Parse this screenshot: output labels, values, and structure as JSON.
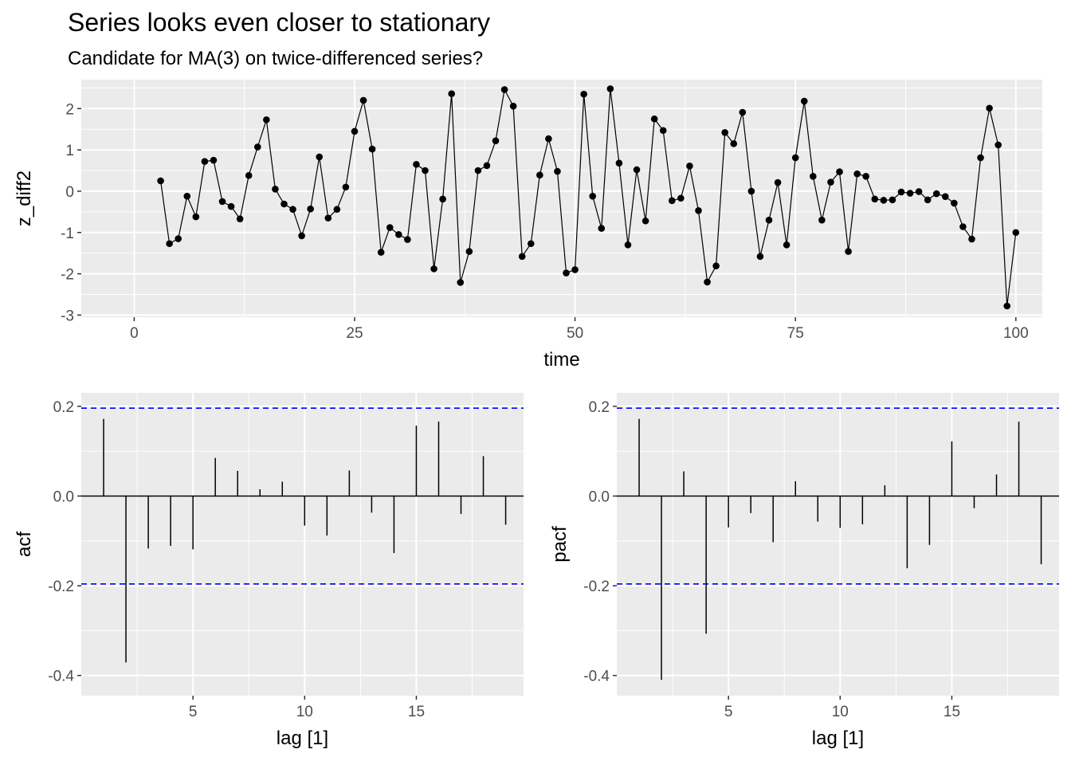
{
  "title": "Series looks even closer to stationary",
  "subtitle": "Candidate for MA(3) on twice-differenced series?",
  "colors": {
    "panel": "#ebebeb",
    "grid": "#ffffff",
    "series": "#000000",
    "ci_line": "#0000ff"
  },
  "chart_data": [
    {
      "type": "line",
      "xlabel": "time",
      "ylabel": "z_diff2",
      "xlim": [
        -6,
        103
      ],
      "ylim": [
        -3.05,
        2.7
      ],
      "x_ticks": [
        0,
        25,
        50,
        75,
        100
      ],
      "y_ticks": [
        -3,
        -2,
        -1,
        0,
        1,
        2
      ],
      "x_tick_labels": [
        "0",
        "25",
        "50",
        "75",
        "100"
      ],
      "y_tick_labels": [
        "-3",
        "-2",
        "-1",
        "0",
        "1",
        "2"
      ],
      "grid": true,
      "markers": true,
      "x": [
        3,
        4,
        5,
        6,
        7,
        8,
        9,
        10,
        11,
        12,
        13,
        14,
        15,
        16,
        17,
        18,
        19,
        20,
        21,
        22,
        23,
        24,
        25,
        26,
        27,
        28,
        29,
        30,
        31,
        32,
        33,
        34,
        35,
        36,
        37,
        38,
        39,
        40,
        41,
        42,
        43,
        44,
        45,
        46,
        47,
        48,
        49,
        50,
        51,
        52,
        53,
        54,
        55,
        56,
        57,
        58,
        59,
        60,
        61,
        62,
        63,
        64,
        65,
        66,
        67,
        68,
        69,
        70,
        71,
        72,
        73,
        74,
        75,
        76,
        77,
        78,
        79,
        80,
        81,
        82,
        83,
        84,
        85,
        86,
        87,
        88,
        89,
        90,
        91,
        92,
        93,
        94,
        95,
        96,
        97,
        98,
        99,
        100
      ],
      "y": [
        0.25,
        -1.27,
        -1.15,
        -0.12,
        -0.62,
        0.72,
        0.75,
        -0.25,
        -0.37,
        -0.67,
        0.38,
        1.07,
        1.73,
        0.05,
        -0.31,
        -0.44,
        -1.08,
        -0.43,
        0.83,
        -0.65,
        -0.44,
        0.1,
        1.45,
        2.2,
        1.02,
        -1.48,
        -0.88,
        -1.05,
        -1.17,
        0.65,
        0.5,
        -1.88,
        -0.19,
        2.36,
        -2.21,
        -1.46,
        0.5,
        0.62,
        1.22,
        2.46,
        2.06,
        -1.58,
        -1.27,
        0.39,
        1.27,
        0.48,
        -1.98,
        -1.9,
        2.35,
        -0.12,
        -0.9,
        2.48,
        0.68,
        -1.3,
        0.52,
        -0.72,
        1.75,
        1.47,
        -0.23,
        -0.17,
        0.61,
        -0.47,
        -2.2,
        -1.81,
        1.42,
        1.15,
        1.91,
        0.0,
        -1.58,
        -0.7,
        0.21,
        -1.3,
        0.81,
        2.18,
        0.36,
        -0.7,
        0.22,
        0.47,
        -1.46,
        0.42,
        0.36,
        -0.19,
        -0.22,
        -0.21,
        -0.02,
        -0.05,
        -0.01,
        -0.21,
        -0.06,
        -0.13,
        -0.29,
        -0.86,
        -1.16,
        0.81,
        2.01,
        1.12,
        -2.78,
        -1.0
      ]
    },
    {
      "type": "bar",
      "xlabel": "lag [1]",
      "ylabel": "acf",
      "xlim": [
        0.0,
        19.8
      ],
      "ylim": [
        -0.445,
        0.23
      ],
      "x_ticks": [
        5,
        10,
        15
      ],
      "y_ticks": [
        -0.4,
        -0.2,
        0.0,
        0.2
      ],
      "x_tick_labels": [
        "5",
        "10",
        "15"
      ],
      "y_tick_labels": [
        "-0.4",
        "-0.2",
        "0.0",
        "0.2"
      ],
      "ci": 0.196,
      "lags": [
        1,
        2,
        3,
        4,
        5,
        6,
        7,
        8,
        9,
        10,
        11,
        12,
        13,
        14,
        15,
        16,
        17,
        18,
        19
      ],
      "values": [
        0.172,
        -0.371,
        -0.117,
        -0.111,
        -0.119,
        0.085,
        0.056,
        0.015,
        0.032,
        -0.066,
        -0.088,
        0.057,
        -0.037,
        -0.127,
        0.157,
        0.166,
        -0.04,
        0.089,
        -0.064
      ]
    },
    {
      "type": "bar",
      "xlabel": "lag [1]",
      "ylabel": "pacf",
      "xlim": [
        0.0,
        19.8
      ],
      "ylim": [
        -0.445,
        0.23
      ],
      "x_ticks": [
        5,
        10,
        15
      ],
      "y_ticks": [
        -0.4,
        -0.2,
        0.0,
        0.2
      ],
      "x_tick_labels": [
        "5",
        "10",
        "15"
      ],
      "y_tick_labels": [
        "-0.4",
        "-0.2",
        "0.0",
        "0.2"
      ],
      "ci": 0.196,
      "lags": [
        1,
        2,
        3,
        4,
        5,
        6,
        7,
        8,
        9,
        10,
        11,
        12,
        13,
        14,
        15,
        16,
        17,
        18,
        19
      ],
      "values": [
        0.172,
        -0.41,
        0.055,
        -0.307,
        -0.07,
        -0.038,
        -0.103,
        0.033,
        -0.057,
        -0.071,
        -0.063,
        0.024,
        -0.161,
        -0.109,
        0.122,
        -0.027,
        0.048,
        0.166,
        -0.152
      ]
    }
  ]
}
